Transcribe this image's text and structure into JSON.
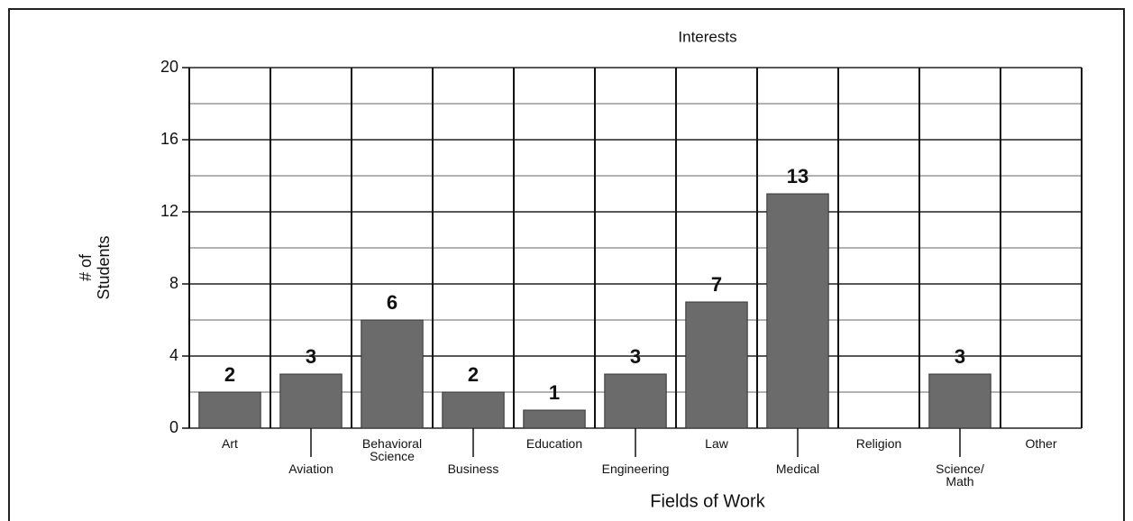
{
  "chart_data": {
    "type": "bar",
    "title": "Interests",
    "x_label": "Fields of Work",
    "y_label": "# of\nStudents",
    "categories": [
      "Art",
      "Aviation",
      "Behavioral\nScience",
      "Business",
      "Education",
      "Engineering",
      "Law",
      "Medical",
      "Religion",
      "Science/\nMath",
      "Other"
    ],
    "values": [
      2,
      3,
      6,
      2,
      1,
      3,
      7,
      13,
      0,
      3,
      0
    ],
    "color": "#6b6b6b",
    "ylim": [
      0,
      20
    ],
    "yticks": [
      0,
      4,
      8,
      12,
      16,
      20
    ],
    "grid": true
  }
}
